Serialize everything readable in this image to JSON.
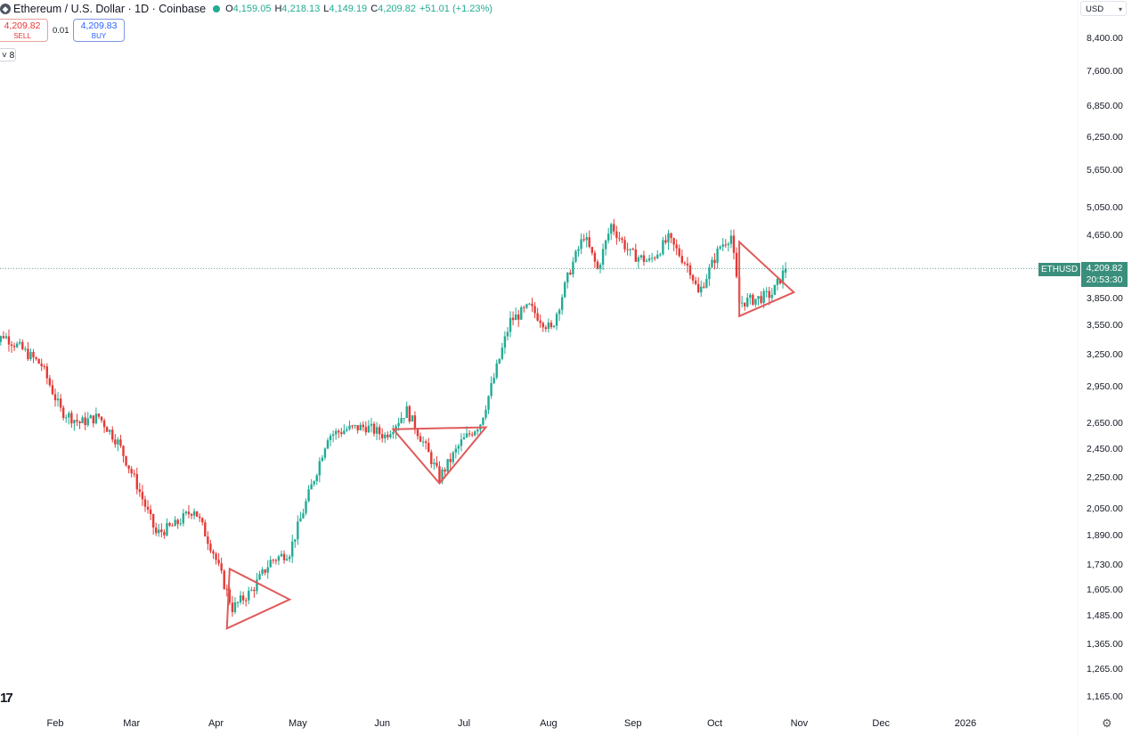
{
  "legend": {
    "coin_icon": "ethereum-icon",
    "title": "Ethereum / U.S. Dollar · 1D · Coinbase",
    "open_label": "O",
    "open": "4,159.05",
    "high_label": "H",
    "high": "4,218.13",
    "low_label": "L",
    "low": "4,149.19",
    "close_label": "C",
    "close": "4,209.82",
    "change": "+51.01 (+1.23%)"
  },
  "trade": {
    "sell_price": "4,209.82",
    "sell_label": "SELL",
    "spread": "0.01",
    "buy_price": "4,209.83",
    "buy_label": "BUY"
  },
  "indicator_toggle": {
    "icon": "chevron-down-icon",
    "count": "8"
  },
  "currency_select": "USD",
  "price_axis": {
    "scale": "log",
    "ticks": [
      "8,400.00",
      "7,600.00",
      "6,850.00",
      "6,250.00",
      "5,650.00",
      "5,050.00",
      "4,650.00",
      "3,850.00",
      "3,550.00",
      "3,250.00",
      "2,950.00",
      "2,650.00",
      "2,450.00",
      "2,250.00",
      "2,050.00",
      "1,890.00",
      "1,730.00",
      "1,605.00",
      "1,485.00",
      "1,365.00",
      "1,265.00",
      "1,165.00"
    ]
  },
  "time_axis": {
    "ticks": [
      "Feb",
      "Mar",
      "Apr",
      "May",
      "Jun",
      "Jul",
      "Aug",
      "Sep",
      "Oct",
      "Nov",
      "Dec",
      "2026"
    ]
  },
  "last_price": {
    "symbol": "ETHUSD",
    "price": "4,209.82",
    "countdown": "20:53:30"
  },
  "colors": {
    "up": "#22ab94",
    "down": "#e53935",
    "pattern": "#e05a5a",
    "last_line": "#3a8f7c"
  },
  "chart_data": {
    "type": "candlestick",
    "symbol": "ETHUSD",
    "interval": "1D",
    "y_scale": "log",
    "ylim": [
      1100,
      9000
    ],
    "x_start": "2025-01-08",
    "x_end": "2025-12-31",
    "monthly_path": [
      {
        "date": "2025-01-08",
        "close": 3300
      },
      {
        "date": "2025-01-13",
        "close": 3450
      },
      {
        "date": "2025-01-20",
        "close": 3300
      },
      {
        "date": "2025-01-27",
        "close": 3150
      },
      {
        "date": "2025-02-03",
        "close": 2750
      },
      {
        "date": "2025-02-10",
        "close": 2650
      },
      {
        "date": "2025-02-17",
        "close": 2700
      },
      {
        "date": "2025-02-24",
        "close": 2500
      },
      {
        "date": "2025-03-03",
        "close": 2200
      },
      {
        "date": "2025-03-10",
        "close": 1900
      },
      {
        "date": "2025-03-17",
        "close": 1950
      },
      {
        "date": "2025-03-24",
        "close": 2050
      },
      {
        "date": "2025-03-31",
        "close": 1800
      },
      {
        "date": "2025-04-07",
        "close": 1520
      },
      {
        "date": "2025-04-14",
        "close": 1600
      },
      {
        "date": "2025-04-21",
        "close": 1750
      },
      {
        "date": "2025-04-28",
        "close": 1800
      },
      {
        "date": "2025-05-08",
        "close": 2300
      },
      {
        "date": "2025-05-12",
        "close": 2550
      },
      {
        "date": "2025-05-19",
        "close": 2600
      },
      {
        "date": "2025-05-26",
        "close": 2620
      },
      {
        "date": "2025-06-02",
        "close": 2550
      },
      {
        "date": "2025-06-10",
        "close": 2750
      },
      {
        "date": "2025-06-16",
        "close": 2500
      },
      {
        "date": "2025-06-22",
        "close": 2250
      },
      {
        "date": "2025-06-30",
        "close": 2500
      },
      {
        "date": "2025-07-07",
        "close": 2650
      },
      {
        "date": "2025-07-11",
        "close": 2950
      },
      {
        "date": "2025-07-18",
        "close": 3600
      },
      {
        "date": "2025-07-25",
        "close": 3750
      },
      {
        "date": "2025-08-02",
        "close": 3500
      },
      {
        "date": "2025-08-09",
        "close": 4200
      },
      {
        "date": "2025-08-14",
        "close": 4650
      },
      {
        "date": "2025-08-19",
        "close": 4200
      },
      {
        "date": "2025-08-24",
        "close": 4800
      },
      {
        "date": "2025-08-31",
        "close": 4400
      },
      {
        "date": "2025-09-07",
        "close": 4300
      },
      {
        "date": "2025-09-14",
        "close": 4600
      },
      {
        "date": "2025-09-22",
        "close": 4200
      },
      {
        "date": "2025-09-25",
        "close": 3900
      },
      {
        "date": "2025-10-03",
        "close": 4500
      },
      {
        "date": "2025-10-07",
        "close": 4650
      },
      {
        "date": "2025-10-10",
        "close": 3800
      },
      {
        "date": "2025-10-17",
        "close": 3850
      },
      {
        "date": "2025-10-22",
        "close": 3900
      },
      {
        "date": "2025-10-27",
        "close": 4209.82
      }
    ],
    "patterns": [
      {
        "type": "triangle",
        "points": [
          {
            "date": "2025-04-06",
            "price": 1710
          },
          {
            "date": "2025-04-28",
            "price": 1560
          },
          {
            "date": "2025-04-05",
            "price": 1430
          }
        ]
      },
      {
        "type": "ascending-triangle",
        "points": [
          {
            "date": "2025-06-05",
            "price": 2600
          },
          {
            "date": "2025-07-09",
            "price": 2615
          },
          {
            "date": "2025-06-22",
            "price": 2210
          }
        ]
      },
      {
        "type": "triangle",
        "points": [
          {
            "date": "2025-10-10",
            "price": 4560
          },
          {
            "date": "2025-10-30",
            "price": 3920
          },
          {
            "date": "2025-10-10",
            "price": 3650
          }
        ]
      }
    ],
    "last_close": 4209.82
  }
}
